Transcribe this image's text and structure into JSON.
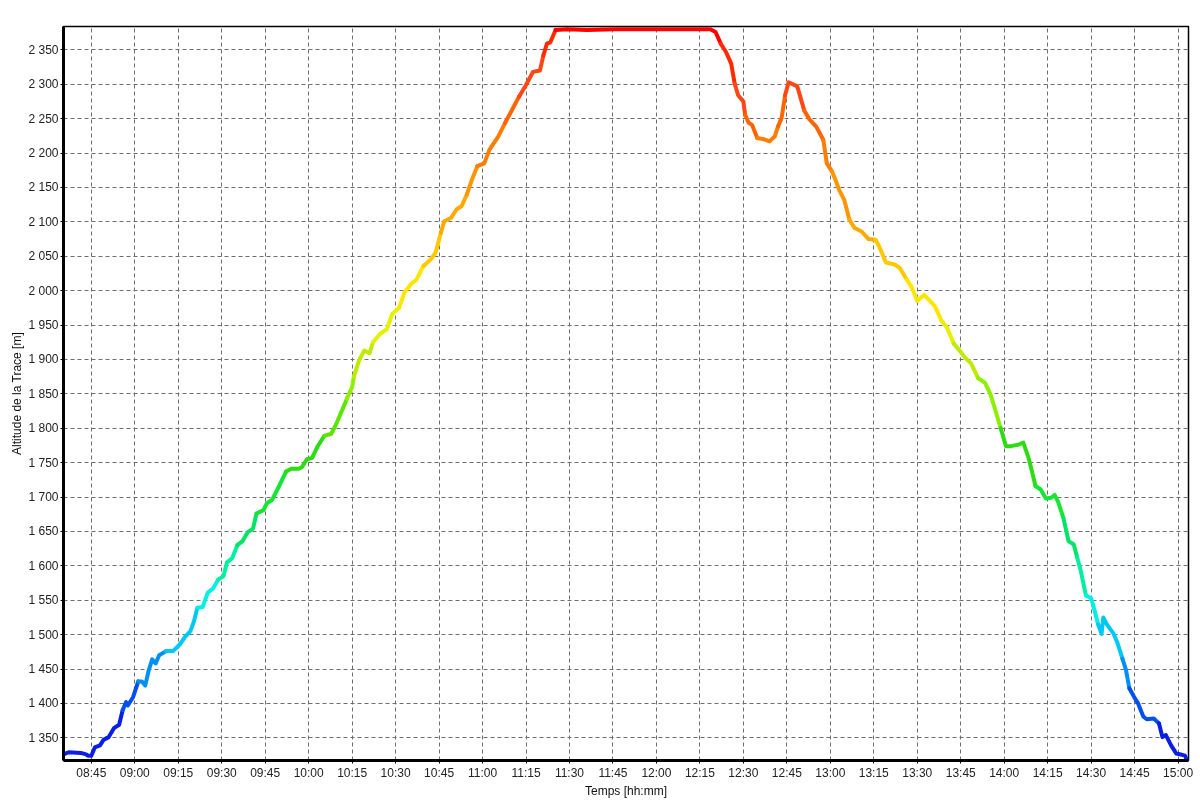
{
  "chart_data": {
    "type": "line",
    "xlabel": "Temps [hh:mm]",
    "ylabel": "Altitude de la Trace [m]",
    "xlim": [
      8.59,
      15.06
    ],
    "ylim": [
      1317,
      2384
    ],
    "grid": true,
    "xticks": [
      {
        "value": 8.75,
        "label": "08:45"
      },
      {
        "value": 9,
        "label": "09:00"
      },
      {
        "value": 9.25,
        "label": "09:15"
      },
      {
        "value": 9.5,
        "label": "09:30"
      },
      {
        "value": 9.75,
        "label": "09:45"
      },
      {
        "value": 10,
        "label": "10:00"
      },
      {
        "value": 10.25,
        "label": "10:15"
      },
      {
        "value": 10.5,
        "label": "10:30"
      },
      {
        "value": 10.75,
        "label": "10:45"
      },
      {
        "value": 11,
        "label": "11:00"
      },
      {
        "value": 11.25,
        "label": "11:15"
      },
      {
        "value": 11.5,
        "label": "11:30"
      },
      {
        "value": 11.75,
        "label": "11:45"
      },
      {
        "value": 12,
        "label": "12:00"
      },
      {
        "value": 12.25,
        "label": "12:15"
      },
      {
        "value": 12.5,
        "label": "12:30"
      },
      {
        "value": 12.75,
        "label": "12:45"
      },
      {
        "value": 13,
        "label": "13:00"
      },
      {
        "value": 13.25,
        "label": "13:15"
      },
      {
        "value": 13.5,
        "label": "13:30"
      },
      {
        "value": 13.75,
        "label": "13:45"
      },
      {
        "value": 14,
        "label": "14:00"
      },
      {
        "value": 14.25,
        "label": "14:15"
      },
      {
        "value": 14.5,
        "label": "14:30"
      },
      {
        "value": 14.75,
        "label": "14:45"
      },
      {
        "value": 15,
        "label": "15:00"
      }
    ],
    "yticks": [
      {
        "value": 1350,
        "label": "1 350"
      },
      {
        "value": 1400,
        "label": "1 400"
      },
      {
        "value": 1450,
        "label": "1 450"
      },
      {
        "value": 1500,
        "label": "1 500"
      },
      {
        "value": 1550,
        "label": "1 550"
      },
      {
        "value": 1600,
        "label": "1 600"
      },
      {
        "value": 1650,
        "label": "1 650"
      },
      {
        "value": 1700,
        "label": "1 700"
      },
      {
        "value": 1750,
        "label": "1 750"
      },
      {
        "value": 1800,
        "label": "1 800"
      },
      {
        "value": 1850,
        "label": "1 850"
      },
      {
        "value": 1900,
        "label": "1 900"
      },
      {
        "value": 1950,
        "label": "1 950"
      },
      {
        "value": 2000,
        "label": "2 000"
      },
      {
        "value": 2050,
        "label": "2 050"
      },
      {
        "value": 2100,
        "label": "2 100"
      },
      {
        "value": 2150,
        "label": "2 150"
      },
      {
        "value": 2200,
        "label": "2 200"
      },
      {
        "value": 2250,
        "label": "2 250"
      },
      {
        "value": 2300,
        "label": "2 300"
      },
      {
        "value": 2350,
        "label": "2 350"
      }
    ],
    "series": [
      {
        "color": "#0a1ee6",
        "x": [
          8.6,
          8.62,
          8.69,
          8.72,
          8.73,
          8.75,
          8.77,
          8.8,
          8.82,
          8.85,
          8.88,
          8.91,
          8.93
        ],
        "values": [
          1327,
          1329,
          1328,
          1326,
          1324,
          1324,
          1336,
          1339,
          1347,
          1351,
          1364,
          1369,
          1390
        ]
      },
      {
        "color": "#0050f0",
        "x": [
          8.93,
          8.95,
          8.96,
          8.99,
          9.02
        ],
        "values": [
          1390,
          1402,
          1397,
          1409,
          1432
        ]
      },
      {
        "color": "#0090f5",
        "x": [
          9.02,
          9.04,
          9.06,
          9.08,
          9.1,
          9.12,
          9.14,
          9.18
        ],
        "values": [
          1432,
          1432,
          1426,
          1448,
          1464,
          1458,
          1470,
          1476
        ]
      },
      {
        "color": "#00c8f5",
        "x": [
          9.18,
          9.22,
          9.26,
          9.29,
          9.32,
          9.34,
          9.36
        ],
        "values": [
          1476,
          1476,
          1486,
          1497,
          1505,
          1519,
          1539
        ]
      },
      {
        "color": "#00f0e6",
        "x": [
          9.36,
          9.39,
          9.42,
          9.45,
          9.48
        ],
        "values": [
          1539,
          1540,
          1561,
          1567,
          1580
        ]
      },
      {
        "color": "#00f0a0",
        "x": [
          9.48,
          9.51,
          9.53,
          9.56,
          9.59
        ],
        "values": [
          1580,
          1585,
          1605,
          1611,
          1630
        ]
      },
      {
        "color": "#00e664",
        "x": [
          9.59,
          9.62,
          9.65,
          9.68,
          9.7
        ],
        "values": [
          1630,
          1636,
          1649,
          1654,
          1676
        ]
      },
      {
        "color": "#14e632",
        "x": [
          9.7,
          9.74,
          9.76,
          9.79,
          9.83,
          9.87
        ],
        "values": [
          1676,
          1681,
          1691,
          1696,
          1716,
          1737
        ]
      },
      {
        "color": "#2ddc14",
        "x": [
          9.87,
          9.9,
          9.94,
          9.96,
          9.99,
          10.02,
          10.05,
          10.09
        ],
        "values": [
          1737,
          1741,
          1741,
          1743,
          1755,
          1757,
          1773,
          1789
        ]
      },
      {
        "color": "#5ae600",
        "x": [
          10.09,
          10.13,
          10.16,
          10.18,
          10.22
        ],
        "values": [
          1789,
          1792,
          1807,
          1819,
          1843
        ]
      },
      {
        "color": "#8cf000",
        "x": [
          10.22,
          10.25,
          10.26
        ],
        "values": [
          1843,
          1860,
          1875
        ]
      },
      {
        "color": "#beeb00",
        "x": [
          10.26,
          10.29,
          10.32,
          10.35,
          10.37
        ],
        "values": [
          1875,
          1899,
          1913,
          1909,
          1925
        ]
      },
      {
        "color": "#e6f000",
        "x": [
          10.37,
          10.41,
          10.45,
          10.48,
          10.52
        ],
        "values": [
          1925,
          1937,
          1944,
          1966,
          1975
        ]
      },
      {
        "color": "#ffe600",
        "x": [
          10.52,
          10.55,
          10.59,
          10.62,
          10.66
        ],
        "values": [
          1975,
          1997,
          2010,
          2016,
          2036
        ]
      },
      {
        "color": "#ffc800",
        "x": [
          10.66,
          10.7,
          10.73,
          10.76
        ],
        "values": [
          2036,
          2045,
          2055,
          2084
        ]
      },
      {
        "color": "#ffaa00",
        "x": [
          10.76,
          10.78,
          10.82,
          10.85,
          10.88,
          10.91
        ],
        "values": [
          2084,
          2101,
          2106,
          2118,
          2123,
          2140
        ]
      },
      {
        "color": "#ff9600",
        "x": [
          10.91,
          10.94,
          10.97
        ],
        "values": [
          2140,
          2162,
          2181
        ]
      },
      {
        "color": "#ff7d00",
        "x": [
          10.97,
          11.01,
          11.04,
          11.09,
          11.13
        ],
        "values": [
          2181,
          2185,
          2205,
          2224,
          2244
        ]
      },
      {
        "color": "#ff6400",
        "x": [
          11.13,
          11.17,
          11.21
        ],
        "values": [
          2244,
          2263,
          2282
        ]
      },
      {
        "color": "#ff4614",
        "x": [
          11.21,
          11.25,
          11.29,
          11.33,
          11.35
        ],
        "values": [
          2282,
          2299,
          2318,
          2320,
          2342
        ]
      },
      {
        "color": "#ff2a00",
        "x": [
          11.35,
          11.37,
          11.39,
          11.42
        ],
        "values": [
          2342,
          2359,
          2361,
          2379
        ]
      },
      {
        "color": "#ff0000",
        "x": [
          11.42,
          11.49,
          11.6,
          11.76,
          12.06,
          12.31,
          12.34,
          12.37
        ],
        "values": [
          2379,
          2380,
          2379,
          2380,
          2380,
          2380,
          2376,
          2359
        ]
      },
      {
        "color": "#ff2a00",
        "x": [
          12.37,
          12.4,
          12.43,
          12.45
        ],
        "values": [
          2359,
          2347,
          2330,
          2301
        ]
      },
      {
        "color": "#ff4614",
        "x": [
          12.45,
          12.47,
          12.5,
          12.51
        ],
        "values": [
          2301,
          2284,
          2275,
          2256
        ]
      },
      {
        "color": "#ff6400",
        "x": [
          12.51,
          12.53,
          12.55,
          12.58
        ],
        "values": [
          2256,
          2244,
          2241,
          2222
        ]
      },
      {
        "color": "#ff7d00",
        "x": [
          12.58,
          12.62,
          12.65,
          12.68,
          12.7
        ],
        "values": [
          2222,
          2220,
          2217,
          2224,
          2239
        ]
      },
      {
        "color": "#ff6400",
        "x": [
          12.7,
          12.72,
          12.74
        ],
        "values": [
          2239,
          2251,
          2284
        ]
      },
      {
        "color": "#ff4614",
        "x": [
          12.74,
          12.76,
          12.81,
          12.85
        ],
        "values": [
          2284,
          2303,
          2297,
          2262
        ]
      },
      {
        "color": "#ff6400",
        "x": [
          12.85,
          12.88,
          12.92,
          12.96
        ],
        "values": [
          2262,
          2249,
          2238,
          2219
        ]
      },
      {
        "color": "#ff7d00",
        "x": [
          12.96,
          12.98,
          13.01
        ],
        "values": [
          2219,
          2185,
          2173
        ]
      },
      {
        "color": "#ff9600",
        "x": [
          13.01,
          13.03,
          13.05,
          13.08,
          13.11
        ],
        "values": [
          2173,
          2161,
          2147,
          2132,
          2103
        ]
      },
      {
        "color": "#ffaa00",
        "x": [
          13.11,
          13.14,
          13.18,
          13.22,
          13.26
        ],
        "values": [
          2103,
          2091,
          2086,
          2075,
          2074
        ]
      },
      {
        "color": "#ffc800",
        "x": [
          13.26,
          13.28,
          13.32,
          13.37,
          13.4,
          13.44
        ],
        "values": [
          2074,
          2065,
          2041,
          2038,
          2033,
          2016
        ]
      },
      {
        "color": "#ffe600",
        "x": [
          13.44,
          13.47,
          13.5,
          13.54,
          13.6,
          13.64
        ],
        "values": [
          2016,
          2004,
          1985,
          1994,
          1978,
          1956
        ]
      },
      {
        "color": "#e6f000",
        "x": [
          13.64,
          13.67,
          13.71
        ],
        "values": [
          1956,
          1947,
          1923
        ]
      },
      {
        "color": "#beeb00",
        "x": [
          13.71,
          13.75,
          13.77,
          13.81,
          13.85
        ],
        "values": [
          1923,
          1911,
          1904,
          1894,
          1873
        ]
      },
      {
        "color": "#8cf000",
        "x": [
          13.85,
          13.89,
          13.92,
          13.94,
          13.98
        ],
        "values": [
          1873,
          1866,
          1850,
          1834,
          1800
        ]
      },
      {
        "color": "#2ddc14",
        "x": [
          13.98,
          14.01,
          14.04,
          14.08,
          14.11,
          14.14,
          14.16,
          14.18
        ],
        "values": [
          1800,
          1774,
          1774,
          1776,
          1779,
          1757,
          1737,
          1716
        ]
      },
      {
        "color": "#14e632",
        "x": [
          14.18,
          14.21,
          14.24,
          14.27,
          14.29,
          14.31,
          14.34
        ],
        "values": [
          1716,
          1711,
          1698,
          1699,
          1703,
          1693,
          1670
        ]
      },
      {
        "color": "#00e664",
        "x": [
          14.34,
          14.37,
          14.4,
          14.42
        ],
        "values": [
          1670,
          1636,
          1631,
          1612
        ]
      },
      {
        "color": "#00f0a0",
        "x": [
          14.42,
          14.44,
          14.47
        ],
        "values": [
          1612,
          1593,
          1557
        ]
      },
      {
        "color": "#00f0e6",
        "x": [
          14.47,
          14.5,
          14.52,
          14.54
        ],
        "values": [
          1557,
          1553,
          1535,
          1515
        ]
      },
      {
        "color": "#00c8f5",
        "x": [
          14.54,
          14.56,
          14.57,
          14.59,
          14.63,
          14.65,
          14.68
        ],
        "values": [
          1515,
          1501,
          1525,
          1515,
          1501,
          1489,
          1465
        ]
      },
      {
        "color": "#0090f5",
        "x": [
          14.68,
          14.7,
          14.72
        ],
        "values": [
          1465,
          1449,
          1422
        ]
      },
      {
        "color": "#0050f0",
        "x": [
          14.72,
          14.75,
          14.77,
          14.8,
          14.82,
          14.86,
          14.89
        ],
        "values": [
          1422,
          1408,
          1400,
          1381,
          1377,
          1378,
          1371
        ]
      },
      {
        "color": "#0a1ee6",
        "x": [
          14.89,
          14.91,
          14.93,
          14.96,
          14.99,
          15.01,
          15.04,
          15.05
        ],
        "values": [
          1371,
          1351,
          1354,
          1339,
          1327,
          1326,
          1324,
          1318
        ]
      }
    ]
  }
}
